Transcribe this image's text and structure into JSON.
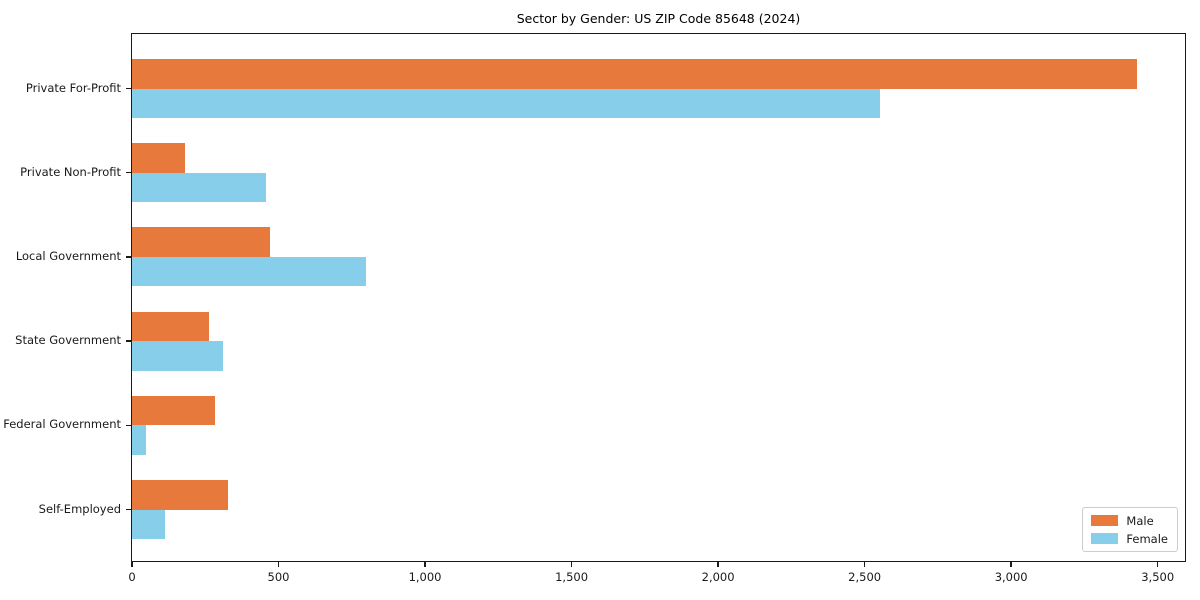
{
  "title": "Sector by Gender: US ZIP Code 85648 (2024)",
  "colors": {
    "male": "#E8793D",
    "female": "#87CEEB",
    "spine": "#1a1a1a",
    "legend_border": "#cccccc",
    "background": "#ffffff"
  },
  "legend": {
    "position": "lower right",
    "items": [
      {
        "label": "Male",
        "color": "#E8793D"
      },
      {
        "label": "Female",
        "color": "#87CEEB"
      }
    ]
  },
  "chart_data": {
    "type": "bar",
    "orientation": "horizontal",
    "title": "Sector by Gender: US ZIP Code 85648 (2024)",
    "xlabel": "",
    "ylabel": "",
    "categories": [
      "Private For-Profit",
      "Private Non-Profit",
      "Local Government",
      "State Government",
      "Federal Government",
      "Self-Employed"
    ],
    "series": [
      {
        "name": "Male",
        "color": "#E8793D",
        "values": [
          3430,
          180,
          470,
          262,
          284,
          328
        ]
      },
      {
        "name": "Female",
        "color": "#87CEEB",
        "values": [
          2553,
          458,
          800,
          311,
          48,
          113
        ]
      }
    ],
    "xlim": [
      0,
      3600
    ],
    "x_ticks": [
      0,
      500,
      1000,
      1500,
      2000,
      2500,
      3000,
      3500
    ],
    "x_tick_labels": [
      "0",
      "500",
      "1,000",
      "1,500",
      "2,000",
      "2,500",
      "3,000",
      "3,500"
    ],
    "grid": false,
    "legend_position": "lower right"
  }
}
